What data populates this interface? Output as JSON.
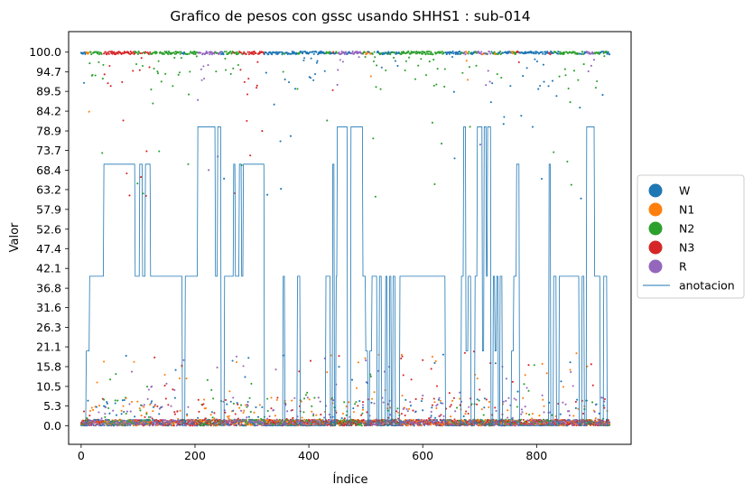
{
  "chart_data": {
    "type": "scatter",
    "title": "Grafico de pesos con gssc usando SHHS1 :  sub-014",
    "xlabel": "Índice",
    "ylabel": "Valor",
    "xlim": [
      -22,
      966
    ],
    "ylim": [
      -5,
      105.5
    ],
    "xticks": [
      0,
      200,
      400,
      600,
      800
    ],
    "xtick_labels": [
      "0",
      "200",
      "400",
      "600",
      "800"
    ],
    "yticks": [
      0.0,
      5.3,
      10.5,
      15.8,
      21.1,
      26.3,
      31.6,
      36.8,
      42.1,
      47.4,
      52.6,
      57.9,
      63.2,
      68.4,
      73.7,
      78.9,
      84.2,
      89.5,
      94.7,
      100.0
    ],
    "ytick_labels": [
      "0.0",
      "5.3",
      "10.5",
      "15.8",
      "21.1",
      "26.3",
      "31.6",
      "36.8",
      "42.1",
      "47.4",
      "52.6",
      "57.9",
      "63.2",
      "68.4",
      "73.7",
      "78.9",
      "84.2",
      "89.5",
      "94.7",
      "100.0"
    ],
    "grid": false,
    "legend_position": "outside-right",
    "series": [
      {
        "name": "W",
        "kind": "points",
        "color": "#1f77b4"
      },
      {
        "name": "N1",
        "kind": "points",
        "color": "#ff7f0e"
      },
      {
        "name": "N2",
        "kind": "points",
        "color": "#2ca02c"
      },
      {
        "name": "N3",
        "kind": "points",
        "color": "#d62728"
      },
      {
        "name": "R",
        "kind": "points",
        "color": "#9467bd"
      },
      {
        "name": "anotacion",
        "kind": "line",
        "color": "#1f77b4"
      }
    ],
    "stage_levels": {
      "W": 0,
      "N1": 20,
      "N2": 40,
      "N3": 70,
      "R": 80
    },
    "annotation_segments": [
      [
        0,
        9,
        "W"
      ],
      [
        9,
        15,
        "N1"
      ],
      [
        15,
        40,
        "N2"
      ],
      [
        40,
        48,
        "N3"
      ],
      [
        48,
        95,
        "N3"
      ],
      [
        95,
        103,
        "N2"
      ],
      [
        103,
        108,
        "N3"
      ],
      [
        108,
        113,
        "N2"
      ],
      [
        113,
        122,
        "N3"
      ],
      [
        122,
        178,
        "N2"
      ],
      [
        178,
        183,
        "W"
      ],
      [
        183,
        200,
        "N2"
      ],
      [
        200,
        205,
        "N2"
      ],
      [
        205,
        236,
        "R"
      ],
      [
        236,
        240,
        "N2"
      ],
      [
        240,
        246,
        "R"
      ],
      [
        246,
        252,
        "W"
      ],
      [
        252,
        268,
        "N2"
      ],
      [
        268,
        271,
        "N3"
      ],
      [
        271,
        278,
        "N2"
      ],
      [
        278,
        282,
        "N3"
      ],
      [
        282,
        285,
        "N2"
      ],
      [
        285,
        322,
        "N3"
      ],
      [
        322,
        355,
        "W"
      ],
      [
        355,
        358,
        "N2"
      ],
      [
        358,
        380,
        "W"
      ],
      [
        380,
        385,
        "N2"
      ],
      [
        385,
        430,
        "W"
      ],
      [
        430,
        438,
        "N2"
      ],
      [
        438,
        442,
        "W"
      ],
      [
        442,
        445,
        "N3"
      ],
      [
        445,
        448,
        "W"
      ],
      [
        448,
        450,
        "N2"
      ],
      [
        450,
        468,
        "R"
      ],
      [
        468,
        474,
        "W"
      ],
      [
        474,
        495,
        "R"
      ],
      [
        495,
        500,
        "N2"
      ],
      [
        500,
        504,
        "N1"
      ],
      [
        504,
        507,
        "W"
      ],
      [
        507,
        511,
        "N1"
      ],
      [
        511,
        520,
        "N2"
      ],
      [
        520,
        524,
        "W"
      ],
      [
        524,
        528,
        "N2"
      ],
      [
        528,
        535,
        "W"
      ],
      [
        535,
        538,
        "N2"
      ],
      [
        538,
        542,
        "W"
      ],
      [
        542,
        545,
        "N2"
      ],
      [
        545,
        548,
        "W"
      ],
      [
        548,
        552,
        "N2"
      ],
      [
        552,
        560,
        "W"
      ],
      [
        560,
        575,
        "N2"
      ],
      [
        575,
        640,
        "N2"
      ],
      [
        640,
        668,
        "W"
      ],
      [
        668,
        672,
        "N2"
      ],
      [
        672,
        676,
        "R"
      ],
      [
        676,
        680,
        "N1"
      ],
      [
        680,
        685,
        "N2"
      ],
      [
        685,
        692,
        "W"
      ],
      [
        692,
        696,
        "N2"
      ],
      [
        696,
        705,
        "R"
      ],
      [
        705,
        708,
        "N1"
      ],
      [
        708,
        712,
        "R"
      ],
      [
        712,
        714,
        "N2"
      ],
      [
        714,
        720,
        "R"
      ],
      [
        720,
        724,
        "W"
      ],
      [
        724,
        727,
        "N2"
      ],
      [
        727,
        730,
        "N1"
      ],
      [
        730,
        733,
        "N2"
      ],
      [
        733,
        736,
        "W"
      ],
      [
        736,
        740,
        "N2"
      ],
      [
        740,
        756,
        "W"
      ],
      [
        756,
        760,
        "N1"
      ],
      [
        760,
        765,
        "N2"
      ],
      [
        765,
        770,
        "N3"
      ],
      [
        770,
        822,
        "W"
      ],
      [
        822,
        825,
        "N3"
      ],
      [
        825,
        830,
        "W"
      ],
      [
        830,
        835,
        "N2"
      ],
      [
        835,
        840,
        "W"
      ],
      [
        840,
        875,
        "N2"
      ],
      [
        875,
        880,
        "W"
      ],
      [
        880,
        884,
        "N2"
      ],
      [
        884,
        888,
        "W"
      ],
      [
        888,
        893,
        "R"
      ],
      [
        893,
        902,
        "R"
      ],
      [
        902,
        912,
        "N2"
      ],
      [
        912,
        918,
        "W"
      ],
      [
        918,
        924,
        "N2"
      ],
      [
        924,
        928,
        "W"
      ]
    ],
    "x_count": 929
  }
}
